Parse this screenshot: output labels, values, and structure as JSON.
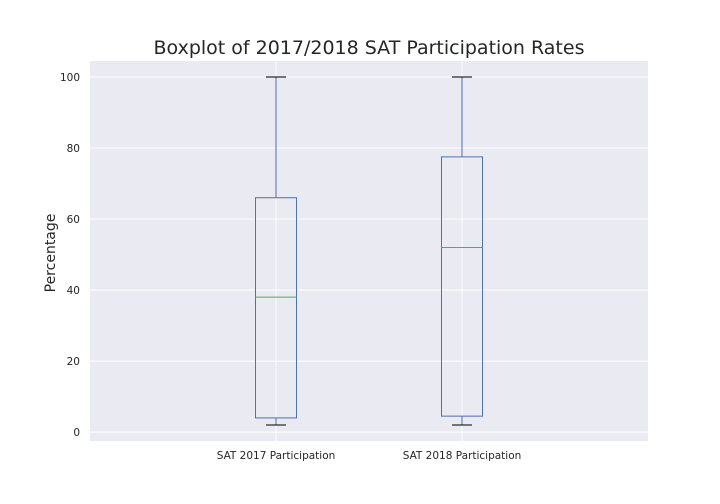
{
  "chart_data": {
    "type": "boxplot",
    "title": "Boxplot of 2017/2018 SAT Participation Rates",
    "xlabel": "",
    "ylabel": "Percentage",
    "ylim": [
      -2.5,
      104.5
    ],
    "yticks": [
      0,
      20,
      40,
      60,
      80,
      100
    ],
    "grid": true,
    "categories": [
      "SAT 2017 Participation",
      "SAT 2018 Participation"
    ],
    "boxes": [
      {
        "whisker_low": 2,
        "q1": 4,
        "median": 38,
        "q3": 66,
        "whisker_high": 100
      },
      {
        "whisker_low": 2,
        "q1": 4.5,
        "median": 52,
        "q3": 77.5,
        "whisker_high": 100
      }
    ],
    "colors": {
      "plot_background": "#EAEAF2",
      "grid": "#FFFFFF",
      "box": "#4C72B0",
      "median": "#55A868",
      "text": "#262626"
    }
  }
}
